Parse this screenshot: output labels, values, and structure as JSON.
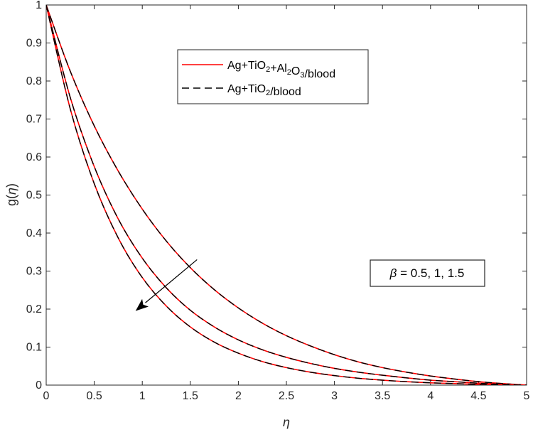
{
  "chart_data": {
    "type": "line",
    "title": "",
    "xlabel": "η",
    "ylabel_prefix": "g(",
    "ylabel_symbol": "η",
    "ylabel_suffix": ")",
    "xlim": [
      0,
      5
    ],
    "ylim": [
      0,
      1
    ],
    "xticks": [
      0,
      0.5,
      1,
      1.5,
      2,
      2.5,
      3,
      3.5,
      4,
      4.5,
      5
    ],
    "xtick_labels": [
      "0",
      "0.5",
      "1",
      "1.5",
      "2",
      "2.5",
      "3",
      "3.5",
      "4",
      "4.5",
      "5"
    ],
    "yticks": [
      0,
      0.1,
      0.2,
      0.3,
      0.4,
      0.5,
      0.6,
      0.7,
      0.8,
      0.9,
      1
    ],
    "ytick_labels": [
      "0",
      "0.1",
      "0.2",
      "0.3",
      "0.4",
      "0.5",
      "0.6",
      "0.7",
      "0.8",
      "0.9",
      "1"
    ],
    "grid": false,
    "legend_position": "top-center",
    "legend": [
      {
        "style": "solid",
        "color": "#ff0000",
        "parts": [
          {
            "t": "Ag+TiO",
            "sub": false
          },
          {
            "t": "2",
            "sub": true
          },
          {
            "t": "+Al",
            "sub": false
          },
          {
            "t": "2",
            "sub": true
          },
          {
            "t": "O",
            "sub": false
          },
          {
            "t": "3",
            "sub": true
          },
          {
            "t": "/blood",
            "sub": false
          }
        ]
      },
      {
        "style": "dashed",
        "color": "#000000",
        "parts": [
          {
            "t": "Ag+TiO",
            "sub": false
          },
          {
            "t": "2",
            "sub": true
          },
          {
            "t": "/blood",
            "sub": false
          }
        ]
      }
    ],
    "x": [
      0,
      0.25,
      0.5,
      0.75,
      1,
      1.25,
      1.5,
      1.75,
      2,
      2.25,
      2.5,
      2.75,
      3,
      3.25,
      3.5,
      3.75,
      4,
      4.25,
      4.5,
      4.75,
      5
    ],
    "series": [
      {
        "beta": 0.5,
        "values": [
          1,
          0.826,
          0.682,
          0.563,
          0.463,
          0.379,
          0.309,
          0.251,
          0.203,
          0.163,
          0.13,
          0.103,
          0.08,
          0.061,
          0.046,
          0.034,
          0.024,
          0.016,
          0.009,
          0.004,
          0
        ]
      },
      {
        "beta": 1,
        "values": [
          1,
          0.757,
          0.575,
          0.437,
          0.334,
          0.256,
          0.197,
          0.153,
          0.119,
          0.093,
          0.073,
          0.057,
          0.044,
          0.034,
          0.026,
          0.019,
          0.013,
          0.009,
          0.005,
          0.002,
          0
        ]
      },
      {
        "beta": 1.5,
        "values": [
          1,
          0.727,
          0.53,
          0.387,
          0.283,
          0.208,
          0.153,
          0.113,
          0.084,
          0.062,
          0.046,
          0.034,
          0.025,
          0.018,
          0.013,
          0.009,
          0.006,
          0.004,
          0.002,
          0.001,
          0
        ]
      }
    ],
    "annotation": {
      "symbol": "β",
      "text": " = 0.5, 1, 1.5",
      "arrow_from": [
        1.57,
        0.33
      ],
      "arrow_to": [
        0.93,
        0.195
      ]
    }
  }
}
